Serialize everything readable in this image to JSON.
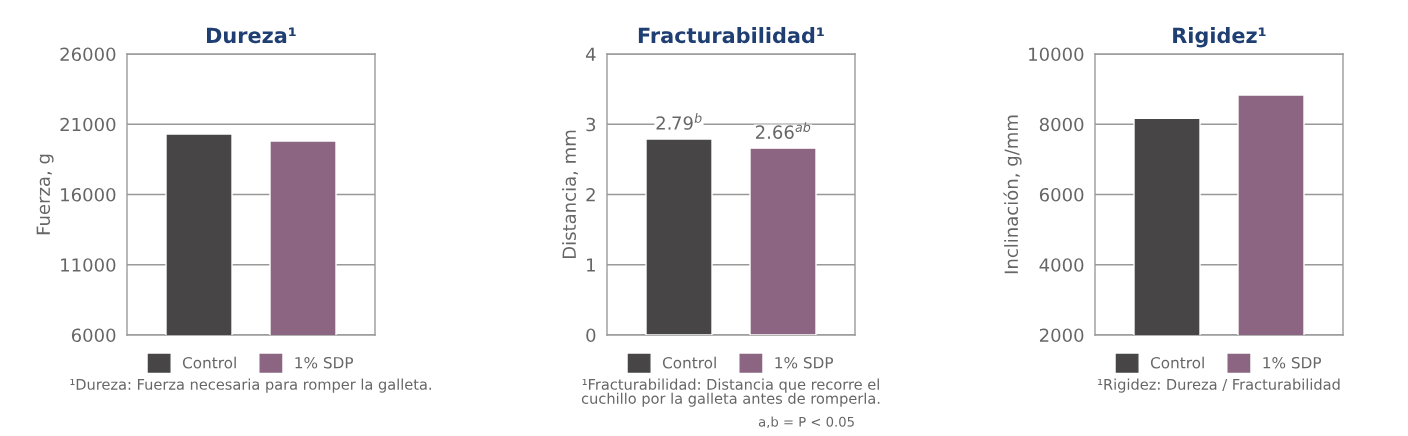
{
  "chart_data": [
    {
      "type": "bar",
      "title": "Dureza¹",
      "ylabel": "Fuerza, g",
      "categories": [
        null
      ],
      "series": [
        {
          "name": "Control",
          "color": "#474546",
          "values": [
            20300
          ]
        },
        {
          "name": "1% SDP",
          "color": "#8b6581",
          "values": [
            19800
          ]
        }
      ],
      "ylim": [
        6000,
        26000
      ],
      "yticks": [
        6000,
        11000,
        16000,
        21000,
        26000
      ],
      "grid": "y",
      "legend": "bottom",
      "tick_labels": "y",
      "annotations": [
        "¹Dureza: Fuerza necesaria para romper la galleta."
      ]
    },
    {
      "type": "bar",
      "title": "Fracturabilidad¹",
      "ylabel": "Distancia, mm",
      "categories": [
        null
      ],
      "series": [
        {
          "name": "Control",
          "color": "#474546",
          "values": [
            2.79
          ],
          "value_labels": [
            "2.79$^{b}$"
          ]
        },
        {
          "name": "1% SDP",
          "color": "#8b6581",
          "values": [
            2.66
          ],
          "value_labels": [
            "2.66$^{ab}$"
          ]
        }
      ],
      "ylim": [
        0,
        4
      ],
      "yticks": [
        0,
        1,
        2,
        3,
        4
      ],
      "grid": "y",
      "legend": "bottom",
      "tick_labels": "y",
      "annotations": [
        "¹Fracturabilidad: Distancia que recorre el\ncuchillo por la galleta antes de romperla.",
        "a,b = P < 0.05"
      ]
    },
    {
      "type": "bar",
      "title": "Rigidez¹",
      "ylabel": "Inclinación, g/mm",
      "categories": [
        null
      ],
      "series": [
        {
          "name": "Control",
          "color": "#474546",
          "values": [
            8170
          ]
        },
        {
          "name": "1% SDP",
          "color": "#8b6581",
          "values": [
            8830
          ]
        }
      ],
      "ylim": [
        2000,
        10000
      ],
      "yticks": [
        2000,
        4000,
        6000,
        8000,
        10000
      ],
      "grid": "y",
      "legend": "bottom",
      "tick_labels": "y",
      "annotations": [
        "¹Rigidez: Dureza / Fracturabilidad"
      ]
    }
  ]
}
